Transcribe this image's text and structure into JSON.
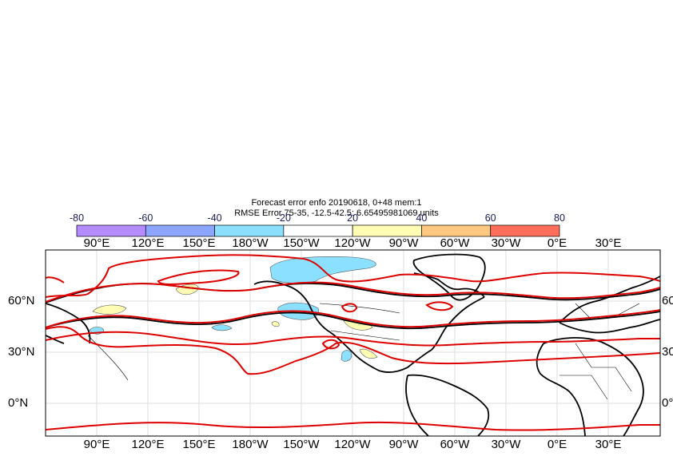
{
  "title": {
    "line1": "Forecast error  enfo 20190618, 0+48 mem:1",
    "line2": "RMSE Error 75-35, -12.5-42.5: 6.65495981069 units"
  },
  "colorbar": {
    "labels": [
      "-80",
      "-60",
      "-40",
      "-20",
      "20",
      "40",
      "60",
      "80"
    ],
    "colors": [
      "#b48cff",
      "#8ca6ff",
      "#8ce0ff",
      "#ffffff",
      "#fffcb4",
      "#ffc880",
      "#ff6e5a"
    ]
  },
  "axes": {
    "lon_labels": [
      "90°E",
      "120°E",
      "150°E",
      "180°W",
      "150°W",
      "120°W",
      "90°W",
      "60°W",
      "30°W",
      "0°E",
      "30°E"
    ],
    "lat_labels_left": [
      "60°N",
      "30°N",
      "0°N"
    ],
    "lat_labels_right": [
      "60",
      "30",
      "0°"
    ]
  },
  "colors": {
    "contour_red": "#dd0000",
    "contour_black": "#000000",
    "positive_fill": "#fffcb4",
    "negative_fill": "#8ce0ff"
  }
}
